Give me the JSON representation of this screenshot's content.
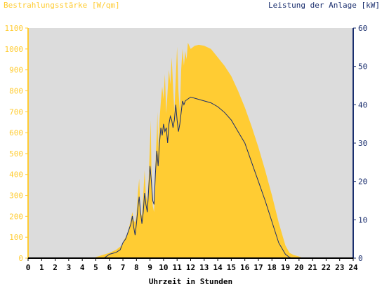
{
  "chart_data": {
    "type": "area",
    "title_left": "Bestrahlungsstärke [W/qm]",
    "title_right": "Leistung der Anlage [kW]",
    "xlabel": "Uhrzeit in Stunden",
    "xlim": [
      0,
      24
    ],
    "x_ticks": [
      "0",
      "1",
      "2",
      "3",
      "4",
      "5",
      "6",
      "7",
      "8",
      "9",
      "10",
      "11",
      "12",
      "13",
      "14",
      "15",
      "16",
      "17",
      "18",
      "19",
      "20",
      "21",
      "22",
      "23",
      "24"
    ],
    "y_left": {
      "lim": [
        0,
        1100
      ],
      "ticks": [
        "0",
        "100",
        "200",
        "300",
        "400",
        "500",
        "600",
        "700",
        "800",
        "900",
        "1000",
        "1100"
      ]
    },
    "y_right": {
      "lim": [
        0,
        60
      ],
      "ticks": [
        "0",
        "10",
        "20",
        "30",
        "40",
        "50",
        "60"
      ]
    },
    "grid": false,
    "colors": {
      "background": "#dcdcdc",
      "irradiance_fill": "#ffcc33",
      "left_axis": "#ffcc33",
      "right_axis": "#1a2e6e",
      "power_line": "#1a2e6e"
    },
    "series": [
      {
        "axis": "left",
        "style": "area",
        "points": [
          [
            0,
            0
          ],
          [
            4.9,
            0
          ],
          [
            5.0,
            5
          ],
          [
            5.5,
            15
          ],
          [
            6.0,
            25
          ],
          [
            6.5,
            40
          ],
          [
            6.9,
            60
          ],
          [
            7.1,
            90
          ],
          [
            7.3,
            110
          ],
          [
            7.5,
            160
          ],
          [
            7.7,
            220
          ],
          [
            7.8,
            180
          ],
          [
            7.9,
            170
          ],
          [
            8.0,
            200
          ],
          [
            8.1,
            310
          ],
          [
            8.2,
            380
          ],
          [
            8.3,
            220
          ],
          [
            8.4,
            200
          ],
          [
            8.5,
            300
          ],
          [
            8.6,
            420
          ],
          [
            8.7,
            300
          ],
          [
            8.8,
            270
          ],
          [
            8.9,
            380
          ],
          [
            9.0,
            550
          ],
          [
            9.05,
            660
          ],
          [
            9.1,
            430
          ],
          [
            9.2,
            250
          ],
          [
            9.3,
            220
          ],
          [
            9.4,
            450
          ],
          [
            9.5,
            600
          ],
          [
            9.55,
            700
          ],
          [
            9.6,
            520
          ],
          [
            9.7,
            660
          ],
          [
            9.8,
            750
          ],
          [
            9.9,
            820
          ],
          [
            10.0,
            760
          ],
          [
            10.1,
            880
          ],
          [
            10.2,
            690
          ],
          [
            10.3,
            800
          ],
          [
            10.4,
            900
          ],
          [
            10.5,
            830
          ],
          [
            10.6,
            960
          ],
          [
            10.7,
            820
          ],
          [
            10.8,
            700
          ],
          [
            10.9,
            860
          ],
          [
            11.0,
            1010
          ],
          [
            11.1,
            800
          ],
          [
            11.2,
            700
          ],
          [
            11.3,
            900
          ],
          [
            11.4,
            1000
          ],
          [
            11.5,
            920
          ],
          [
            11.6,
            990
          ],
          [
            11.7,
            950
          ],
          [
            11.8,
            1030
          ],
          [
            12.0,
            1000
          ],
          [
            12.3,
            1015
          ],
          [
            12.6,
            1020
          ],
          [
            13.0,
            1015
          ],
          [
            13.5,
            1000
          ],
          [
            14.0,
            960
          ],
          [
            14.5,
            920
          ],
          [
            15.0,
            870
          ],
          [
            15.5,
            800
          ],
          [
            16.0,
            720
          ],
          [
            16.5,
            630
          ],
          [
            17.0,
            530
          ],
          [
            17.5,
            420
          ],
          [
            18.0,
            300
          ],
          [
            18.5,
            170
          ],
          [
            19.0,
            60
          ],
          [
            19.3,
            25
          ],
          [
            19.6,
            15
          ],
          [
            20.0,
            8
          ],
          [
            20.3,
            0
          ],
          [
            24,
            0
          ]
        ]
      },
      {
        "axis": "right",
        "style": "line",
        "points": [
          [
            0,
            0
          ],
          [
            5.6,
            0
          ],
          [
            5.8,
            0.5
          ],
          [
            6.0,
            1
          ],
          [
            6.5,
            1.5
          ],
          [
            6.8,
            2.2
          ],
          [
            7.0,
            4
          ],
          [
            7.2,
            5
          ],
          [
            7.4,
            7
          ],
          [
            7.6,
            9
          ],
          [
            7.7,
            11
          ],
          [
            7.8,
            8
          ],
          [
            7.9,
            6
          ],
          [
            8.0,
            9
          ],
          [
            8.1,
            13
          ],
          [
            8.2,
            16
          ],
          [
            8.3,
            12
          ],
          [
            8.4,
            9
          ],
          [
            8.5,
            12
          ],
          [
            8.6,
            17
          ],
          [
            8.7,
            14
          ],
          [
            8.8,
            12
          ],
          [
            8.9,
            18
          ],
          [
            9.0,
            24
          ],
          [
            9.1,
            20
          ],
          [
            9.2,
            15
          ],
          [
            9.3,
            14
          ],
          [
            9.4,
            22
          ],
          [
            9.5,
            28
          ],
          [
            9.6,
            24
          ],
          [
            9.7,
            30
          ],
          [
            9.8,
            34
          ],
          [
            9.9,
            32
          ],
          [
            10.0,
            35
          ],
          [
            10.1,
            33
          ],
          [
            10.2,
            34
          ],
          [
            10.3,
            30
          ],
          [
            10.4,
            35
          ],
          [
            10.5,
            37
          ],
          [
            10.6,
            36
          ],
          [
            10.7,
            34
          ],
          [
            10.8,
            36
          ],
          [
            10.9,
            40
          ],
          [
            11.0,
            36
          ],
          [
            11.1,
            33
          ],
          [
            11.2,
            35
          ],
          [
            11.3,
            38
          ],
          [
            11.4,
            41
          ],
          [
            11.5,
            40
          ],
          [
            11.6,
            41
          ],
          [
            11.8,
            41.5
          ],
          [
            12.0,
            42
          ],
          [
            12.5,
            41.5
          ],
          [
            13.0,
            41
          ],
          [
            13.5,
            40.5
          ],
          [
            14.0,
            39.5
          ],
          [
            14.5,
            38
          ],
          [
            15.0,
            36
          ],
          [
            15.5,
            33
          ],
          [
            16.0,
            30
          ],
          [
            16.5,
            25
          ],
          [
            17.0,
            20
          ],
          [
            17.5,
            15
          ],
          [
            18.0,
            9.5
          ],
          [
            18.5,
            4
          ],
          [
            19.0,
            1
          ],
          [
            19.3,
            0.2
          ],
          [
            19.5,
            0
          ],
          [
            24,
            0
          ]
        ]
      }
    ]
  }
}
